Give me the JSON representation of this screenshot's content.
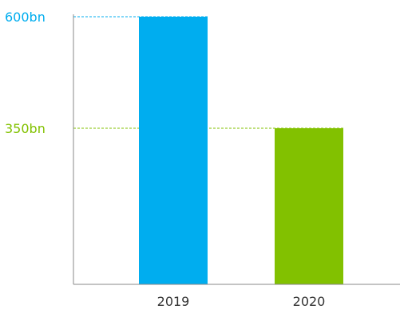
{
  "chart_data": {
    "type": "bar",
    "title": "",
    "xlabel": "",
    "ylabel": "",
    "categories": [
      "2019",
      "2020"
    ],
    "values": [
      600,
      350
    ],
    "value_labels": [
      "600bn",
      "350bn"
    ],
    "unit": "bn",
    "ylim": [
      0,
      600
    ],
    "grid": false,
    "legend": "none",
    "colors": [
      "#00adef",
      "#82c100"
    ],
    "axis_color": "#888888",
    "reference_lines": "dashed lines from the y axis to each bar top, in the bar color"
  }
}
